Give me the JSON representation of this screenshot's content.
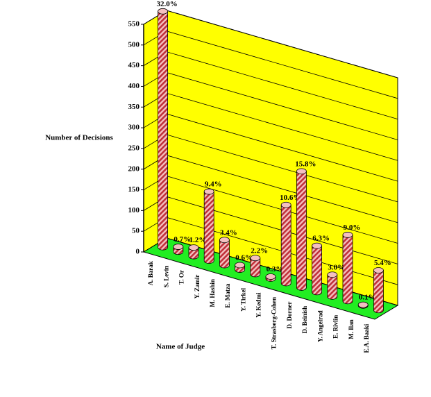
{
  "chart_data": {
    "type": "bar3d",
    "y_axis_label": "Number of Decisions",
    "x_axis_label": "Name of Judge",
    "categories": [
      "A. Barak",
      "S. Levin",
      "T. Or",
      "Y. Zamir",
      "M. Hashin",
      "E. Matza",
      "Y. Tirkel",
      "Y. Kedmi",
      "T. Strasberg-Cohen",
      "D. Dorner",
      "D. Beinish",
      "Y. Angelrad",
      "E. Rivlin",
      "M. Ilan",
      "E.A. Baaki"
    ],
    "values": [
      570,
      12,
      21,
      167,
      61,
      11,
      39,
      5,
      189,
      281,
      112,
      53,
      160,
      2,
      96
    ],
    "percent_labels": [
      "32.0%",
      "0.7%",
      "1.2%",
      "9.4%",
      "3.4%",
      "0.6%",
      "2.2%",
      "0.3%",
      "10.6%",
      "15.8%",
      "6.3%",
      "3.0%",
      "9.0%",
      "0.1%",
      "5.4%"
    ],
    "color": "#c0303a",
    "wall_color": "#ffff00",
    "floor_color": "#22ee22",
    "ylim": [
      0,
      550
    ],
    "yticks": [
      0,
      50,
      100,
      150,
      200,
      250,
      300,
      350,
      400,
      450,
      500,
      550
    ],
    "grid": true
  }
}
